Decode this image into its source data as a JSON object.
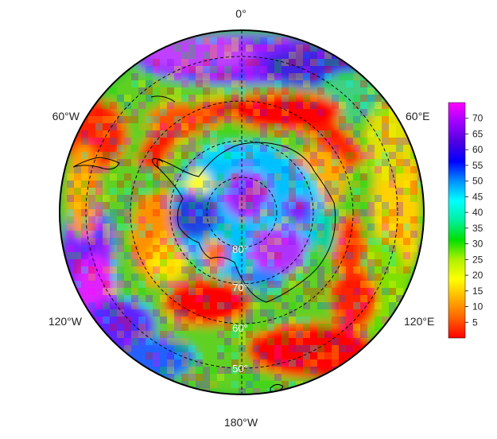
{
  "map": {
    "projection": "south-polar-stereographic",
    "longitude_labels": [
      {
        "id": "lon-0",
        "text": "0°"
      },
      {
        "id": "lon-60e",
        "text": "60°E"
      },
      {
        "id": "lon-120e",
        "text": "120°E"
      },
      {
        "id": "lon-180",
        "text": "180°W"
      },
      {
        "id": "lon-120w",
        "text": "120°W"
      },
      {
        "id": "lon-60w",
        "text": "60°W"
      }
    ],
    "latitude_labels": [
      {
        "id": "lat-80",
        "text": "80°"
      },
      {
        "id": "lat-70",
        "text": "70°"
      },
      {
        "id": "lat-60",
        "text": "60°"
      },
      {
        "id": "lat-50",
        "text": "50°"
      }
    ],
    "colorbar": {
      "min": 0,
      "max": 75,
      "ticks": [
        "5",
        "10",
        "15",
        "20",
        "25",
        "30",
        "35",
        "40",
        "45",
        "50",
        "55",
        "60",
        "65",
        "70"
      ],
      "colors": [
        "#ff0000",
        "#ff6000",
        "#ffb000",
        "#ffff00",
        "#b0f000",
        "#00e000",
        "#00f0a0",
        "#00ffff",
        "#0090ff",
        "#0000ff",
        "#5000e0",
        "#a000ff",
        "#ff00ff"
      ]
    }
  }
}
